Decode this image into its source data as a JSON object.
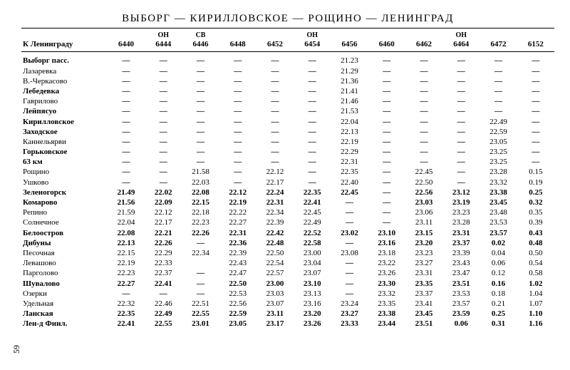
{
  "title": "ВЫБОРГ — КИРИЛЛОВСКОЕ — РОЩИНО — ЛЕНИНГРАД",
  "rowHeader": "К  Ленинграду",
  "pagenum": "59",
  "columns": [
    {
      "num": "6440",
      "tag": ""
    },
    {
      "num": "6444",
      "tag": "ОН"
    },
    {
      "num": "6446",
      "tag": "СВ"
    },
    {
      "num": "6448",
      "tag": ""
    },
    {
      "num": "6452",
      "tag": ""
    },
    {
      "num": "6454",
      "tag": "ОН"
    },
    {
      "num": "6456",
      "tag": ""
    },
    {
      "num": "6460",
      "tag": ""
    },
    {
      "num": "6462",
      "tag": ""
    },
    {
      "num": "6464",
      "tag": "ОН"
    },
    {
      "num": "6472",
      "tag": ""
    },
    {
      "num": "6152",
      "tag": ""
    }
  ],
  "stations": [
    {
      "name": "Выборг пасс.",
      "bold": true,
      "t": [
        "—",
        "—",
        "—",
        "—",
        "—",
        "—",
        "21.23",
        "—",
        "—",
        "—",
        "—",
        "—"
      ]
    },
    {
      "name": "Лазаревка",
      "bold": false,
      "t": [
        "—",
        "—",
        "—",
        "—",
        "—",
        "—",
        "21.29",
        "—",
        "—",
        "—",
        "—",
        "—"
      ]
    },
    {
      "name": "В.-Черкасово",
      "bold": false,
      "t": [
        "—",
        "—",
        "—",
        "—",
        "—",
        "—",
        "21.36",
        "—",
        "—",
        "—",
        "—",
        "—"
      ]
    },
    {
      "name": "Лебедевка",
      "bold": true,
      "t": [
        "—",
        "—",
        "—",
        "—",
        "—",
        "—",
        "21.41",
        "—",
        "—",
        "—",
        "—",
        "—"
      ]
    },
    {
      "name": "Гаврилово",
      "bold": false,
      "t": [
        "—",
        "—",
        "—",
        "—",
        "—",
        "—",
        "21.46",
        "—",
        "—",
        "—",
        "—",
        "—"
      ]
    },
    {
      "name": "Лейпясуо",
      "bold": true,
      "t": [
        "—",
        "—",
        "—",
        "—",
        "—",
        "—",
        "21.53",
        "—",
        "—",
        "—",
        "—",
        "—"
      ]
    },
    {
      "name": "Кирилловское",
      "bold": true,
      "t": [
        "—",
        "—",
        "—",
        "—",
        "—",
        "—",
        "22.04",
        "—",
        "—",
        "—",
        "22.49",
        "—"
      ]
    },
    {
      "name": "Заходское",
      "bold": true,
      "t": [
        "—",
        "—",
        "—",
        "—",
        "—",
        "—",
        "22.13",
        "—",
        "—",
        "—",
        "22.59",
        "—"
      ]
    },
    {
      "name": "Каннельярви",
      "bold": false,
      "t": [
        "—",
        "—",
        "—",
        "—",
        "—",
        "—",
        "22.19",
        "—",
        "—",
        "—",
        "23.05",
        "—"
      ]
    },
    {
      "name": "Горьковское",
      "bold": true,
      "t": [
        "—",
        "—",
        "—",
        "—",
        "—",
        "—",
        "22.29",
        "—",
        "—",
        "—",
        "23.25",
        "—"
      ]
    },
    {
      "name": "63 км",
      "bold": true,
      "t": [
        "—",
        "—",
        "—",
        "—",
        "—",
        "—",
        "22.31",
        "—",
        "—",
        "—",
        "23.25",
        "—"
      ]
    },
    {
      "name": "Рощино",
      "bold": false,
      "t": [
        "—",
        "—",
        "21.58",
        "—",
        "22.12",
        "—",
        "22.35",
        "—",
        "22.45",
        "—",
        "23.28",
        "0.15"
      ]
    },
    {
      "name": "Ушково",
      "bold": false,
      "t": [
        "—",
        "—",
        "22.03",
        "—",
        "22.17",
        "—",
        "22.40",
        "—",
        "22.50",
        "—",
        "23.32",
        "0.19"
      ]
    },
    {
      "name": "Зеленогорск",
      "bold": true,
      "t": [
        "21.49",
        "22.02",
        "22.08",
        "22.12",
        "22.24",
        "22.35",
        "22.45",
        "—",
        "22.56",
        "23.12",
        "23.38",
        "0.25"
      ]
    },
    {
      "name": "Комарово",
      "bold": true,
      "t": [
        "21.56",
        "22.09",
        "22.15",
        "22.19",
        "22.31",
        "22.41",
        "—",
        "—",
        "23.03",
        "23.19",
        "23.45",
        "0.32"
      ]
    },
    {
      "name": "Репино",
      "bold": false,
      "t": [
        "21.59",
        "22.12",
        "22.18",
        "22.22",
        "22.34",
        "22.45",
        "—",
        "—",
        "23.06",
        "23.23",
        "23.48",
        "0.35"
      ]
    },
    {
      "name": "Солнечное",
      "bold": false,
      "t": [
        "22.04",
        "22.17",
        "22.23",
        "22.27",
        "22.39",
        "22.49",
        "—",
        "—",
        "23.11",
        "23.28",
        "23.53",
        "0.39"
      ]
    },
    {
      "name": "Белоостров",
      "bold": true,
      "t": [
        "22.08",
        "22.21",
        "22.26",
        "22.31",
        "22.42",
        "22.52",
        "23.02",
        "23.10",
        "23.15",
        "23.31",
        "23.57",
        "0.43"
      ]
    },
    {
      "name": "Дибуны",
      "bold": true,
      "t": [
        "22.13",
        "22.26",
        "—",
        "22.36",
        "22.48",
        "22.58",
        "—",
        "23.16",
        "23.20",
        "23.37",
        "0.02",
        "0.48"
      ]
    },
    {
      "name": "Песочная",
      "bold": false,
      "t": [
        "22.15",
        "22.29",
        "22.34",
        "22.39",
        "22.50",
        "23.00",
        "23.08",
        "23.18",
        "23.23",
        "23.39",
        "0.04",
        "0.50"
      ]
    },
    {
      "name": "Левашово",
      "bold": false,
      "t": [
        "22.19",
        "22.33",
        "",
        "22.43",
        "22.54",
        "23.04",
        "—",
        "23.22",
        "23.27",
        "23.43",
        "0.06",
        "0.54"
      ]
    },
    {
      "name": "Парголово",
      "bold": false,
      "t": [
        "22.23",
        "22.37",
        "—",
        "22.47",
        "22.57",
        "23.07",
        "—",
        "23.26",
        "23.31",
        "23.47",
        "0.12",
        "0.58"
      ]
    },
    {
      "name": "Шувалово",
      "bold": true,
      "t": [
        "22.27",
        "22.41",
        "—",
        "22.50",
        "23.00",
        "23.10",
        "—",
        "23.30",
        "23.35",
        "23.51",
        "0.16",
        "1.02"
      ]
    },
    {
      "name": "Озерки",
      "bold": false,
      "t": [
        "—",
        "—",
        "—",
        "22.53",
        "23.03",
        "23.13",
        "—",
        "23.32",
        "23.37",
        "23.53",
        "0.18",
        "1.04"
      ]
    },
    {
      "name": "Удельная",
      "bold": false,
      "t": [
        "22.32",
        "22.46",
        "22.51",
        "22.56",
        "23.07",
        "23.16",
        "23.24",
        "23.35",
        "23.41",
        "23.57",
        "0.21",
        "1.07"
      ]
    },
    {
      "name": "Ланская",
      "bold": true,
      "t": [
        "22.35",
        "22.49",
        "22.55",
        "22.59",
        "23.11",
        "23.20",
        "23.27",
        "23.38",
        "23.45",
        "23.59",
        "0.25",
        "1.10"
      ]
    },
    {
      "name": "Лен-д Финл.",
      "bold": true,
      "t": [
        "22.41",
        "22.55",
        "23.01",
        "23.05",
        "23.17",
        "23.26",
        "23.33",
        "23.44",
        "23.51",
        "0.06",
        "0.31",
        "1.16"
      ]
    }
  ],
  "boldTimeRows": [
    13,
    14,
    17,
    18,
    22,
    25,
    26
  ]
}
